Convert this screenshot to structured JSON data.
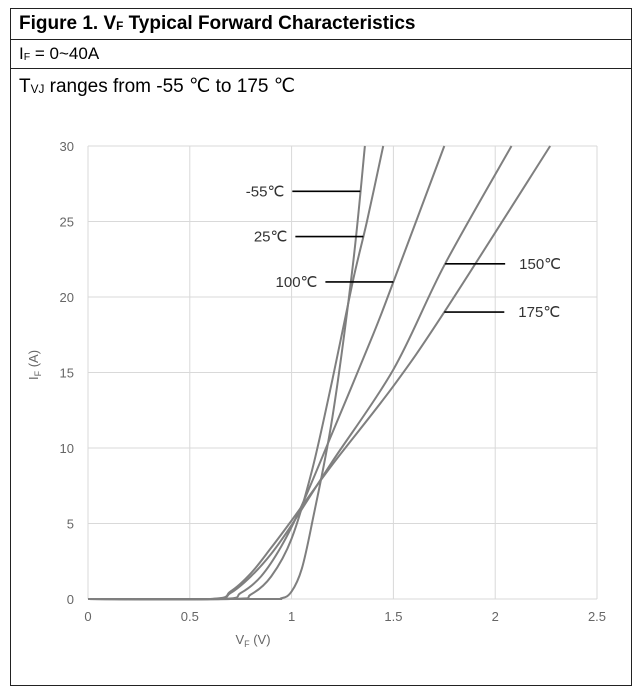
{
  "header": {
    "title_prefix": "Figure 1. V",
    "title_sub": "F",
    "title_suffix": " Typical Forward Characteristics",
    "cond_prefix": "I",
    "cond_sub": "F",
    "cond_suffix": " = 0~40A",
    "range_prefix": "T",
    "range_sub": "VJ",
    "range_suffix": " ranges from -55 ℃ to 175 ℃"
  },
  "chart_data": {
    "type": "line",
    "xlabel_main": "V",
    "xlabel_sub": "F",
    "xlabel_unit": " (V)",
    "ylabel_main": "I",
    "ylabel_sub": "F",
    "ylabel_unit": " (A)",
    "xlim": [
      0,
      2.5
    ],
    "ylim": [
      0,
      30
    ],
    "x_ticks": [
      0,
      0.5,
      1,
      1.5,
      2,
      2.5
    ],
    "x_tick_labels": [
      "0",
      "0.5",
      "1",
      "1.5",
      "2",
      "2.5"
    ],
    "y_ticks": [
      0,
      5,
      10,
      15,
      20,
      25,
      30
    ],
    "y_tick_labels": [
      "0",
      "5",
      "10",
      "15",
      "20",
      "25",
      "30"
    ],
    "grid": true,
    "colors": {
      "curve": "#7f7f7f",
      "leader": "#000000",
      "grid": "#d9d9d9"
    },
    "series": [
      {
        "name": "-55℃",
        "points": [
          [
            0,
            0
          ],
          [
            0.85,
            0
          ],
          [
            0.95,
            0.05
          ],
          [
            1.0,
            0.5
          ],
          [
            1.05,
            2.0
          ],
          [
            1.1,
            5.0
          ],
          [
            1.2,
            12.0
          ],
          [
            1.3,
            22.0
          ],
          [
            1.36,
            30.0
          ]
        ]
      },
      {
        "name": "25℃",
        "points": [
          [
            0,
            0
          ],
          [
            0.7,
            0
          ],
          [
            0.8,
            0.3
          ],
          [
            0.9,
            1.5
          ],
          [
            1.0,
            4.0
          ],
          [
            1.1,
            8.5
          ],
          [
            1.2,
            14.5
          ],
          [
            1.3,
            21.0
          ],
          [
            1.37,
            25.0
          ],
          [
            1.45,
            30.0
          ]
        ]
      },
      {
        "name": "100℃",
        "points": [
          [
            0,
            0
          ],
          [
            0.65,
            0
          ],
          [
            0.75,
            0.4
          ],
          [
            0.85,
            1.5
          ],
          [
            0.95,
            3.5
          ],
          [
            1.05,
            6.2
          ],
          [
            1.2,
            11.0
          ],
          [
            1.4,
            17.5
          ],
          [
            1.5,
            21.0
          ],
          [
            1.75,
            30.0
          ]
        ]
      },
      {
        "name": "150℃",
        "points": [
          [
            0,
            0
          ],
          [
            0.6,
            0
          ],
          [
            0.7,
            0.4
          ],
          [
            0.8,
            1.5
          ],
          [
            0.9,
            3.0
          ],
          [
            1.0,
            4.9
          ],
          [
            1.2,
            9.1
          ],
          [
            1.5,
            15.2
          ],
          [
            1.75,
            22.1
          ],
          [
            2.08,
            30.0
          ]
        ]
      },
      {
        "name": "175℃",
        "points": [
          [
            0,
            0
          ],
          [
            0.6,
            0
          ],
          [
            0.7,
            0.5
          ],
          [
            0.8,
            1.7
          ],
          [
            0.9,
            3.4
          ],
          [
            1.0,
            5.2
          ],
          [
            1.2,
            8.9
          ],
          [
            1.5,
            14.1
          ],
          [
            1.75,
            19.0
          ],
          [
            2.27,
            30.0
          ]
        ]
      }
    ],
    "annotations": [
      {
        "text": "-55℃",
        "series": 0,
        "at_y": 27
      },
      {
        "text": "25℃",
        "series": 1,
        "at_y": 24
      },
      {
        "text": "100℃",
        "series": 2,
        "at_y": 21
      },
      {
        "text": "150℃",
        "series": 3,
        "at_y": 22.2
      },
      {
        "text": "175℃",
        "series": 4,
        "at_y": 19.0
      }
    ]
  }
}
